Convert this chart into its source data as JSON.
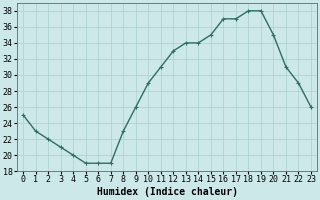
{
  "x": [
    0,
    1,
    2,
    3,
    4,
    5,
    6,
    7,
    8,
    9,
    10,
    11,
    12,
    13,
    14,
    15,
    16,
    17,
    18,
    19,
    20,
    21,
    22,
    23
  ],
  "y": [
    25,
    23,
    22,
    21,
    20,
    19,
    19,
    19,
    23,
    26,
    29,
    31,
    33,
    34,
    34,
    35,
    37,
    37,
    38,
    38,
    35,
    31,
    29,
    26
  ],
  "line_color": "#2e6e65",
  "marker": "+",
  "marker_size": 3,
  "bg_color": "#cce8e8",
  "grid_color": "#aacfcf",
  "xlabel": "Humidex (Indice chaleur)",
  "ylim": [
    18,
    39
  ],
  "xlim": [
    -0.5,
    23.5
  ],
  "yticks": [
    18,
    20,
    22,
    24,
    26,
    28,
    30,
    32,
    34,
    36,
    38
  ],
  "xtick_labels": [
    "0",
    "1",
    "2",
    "3",
    "4",
    "5",
    "6",
    "7",
    "8",
    "9",
    "10",
    "11",
    "12",
    "13",
    "14",
    "15",
    "16",
    "17",
    "18",
    "19",
    "20",
    "21",
    "22",
    "23"
  ],
  "line_width": 1.0,
  "xlabel_fontsize": 7,
  "tick_fontsize": 6,
  "marker_linewidth": 0.8
}
